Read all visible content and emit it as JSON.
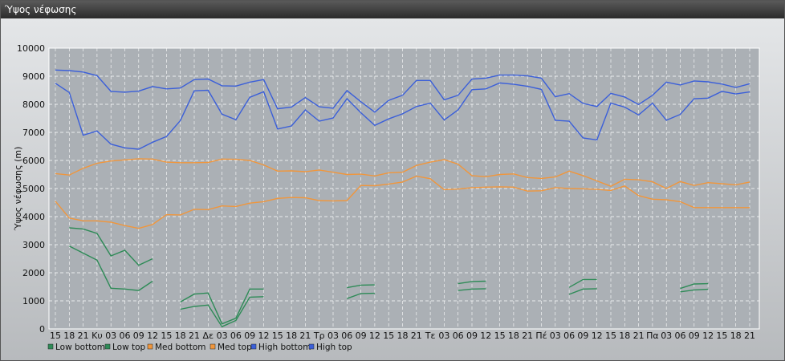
{
  "window": {
    "title": "Ύψος νέφωσης"
  },
  "colors": {
    "low": "#2e8b57",
    "med": "#f0963c",
    "high": "#3b5fd9"
  },
  "chart_data": {
    "type": "line",
    "title": "",
    "xlabel": "",
    "ylabel": "Ύψος νέφωσης (m)",
    "ylim": [
      0,
      10000
    ],
    "yticks": [
      0,
      1000,
      2000,
      3000,
      4000,
      5000,
      6000,
      7000,
      8000,
      9000,
      10000
    ],
    "grid": true,
    "legend_position": "bottom-left",
    "x": [
      "15",
      "18",
      "21",
      "Κυ",
      "03",
      "06",
      "09",
      "12",
      "15",
      "18",
      "21",
      "Δε",
      "03",
      "06",
      "09",
      "12",
      "15",
      "18",
      "21",
      "Τρ",
      "03",
      "06",
      "09",
      "12",
      "15",
      "18",
      "21",
      "Τε",
      "03",
      "06",
      "09",
      "12",
      "15",
      "18",
      "21",
      "Πέ",
      "03",
      "06",
      "09",
      "12",
      "15",
      "18",
      "21",
      "Πα",
      "03",
      "06",
      "09",
      "12",
      "15",
      "18",
      "21"
    ],
    "series": [
      {
        "name": "Low bottom",
        "color": "#2e8b57",
        "values": [
          null,
          2950,
          2700,
          2450,
          1450,
          1420,
          1370,
          1700,
          null,
          700,
          800,
          850,
          80,
          300,
          1130,
          1150,
          null,
          null,
          null,
          null,
          null,
          1080,
          1260,
          1270,
          null,
          null,
          null,
          null,
          null,
          1370,
          1420,
          1430,
          null,
          null,
          null,
          null,
          null,
          1230,
          1420,
          1430,
          null,
          null,
          null,
          null,
          null,
          1320,
          1390,
          1410,
          null,
          null,
          null
        ]
      },
      {
        "name": "Low top",
        "color": "#2e8b57",
        "values": [
          null,
          3600,
          3560,
          3400,
          2600,
          2800,
          2270,
          2500,
          null,
          960,
          1240,
          1280,
          180,
          380,
          1420,
          1420,
          null,
          null,
          null,
          null,
          null,
          1470,
          1560,
          1570,
          null,
          null,
          null,
          null,
          null,
          1610,
          1690,
          1700,
          null,
          null,
          null,
          null,
          null,
          1480,
          1760,
          1760,
          null,
          null,
          null,
          null,
          null,
          1440,
          1600,
          1610,
          null,
          null,
          null
        ]
      },
      {
        "name": "Med bottom",
        "color": "#f0963c",
        "values": [
          4550,
          3950,
          3850,
          3850,
          3800,
          3680,
          3580,
          3720,
          4070,
          4060,
          4260,
          4250,
          4380,
          4360,
          4480,
          4530,
          4650,
          4680,
          4670,
          4570,
          4560,
          4570,
          5110,
          5100,
          5160,
          5230,
          5440,
          5350,
          4960,
          4980,
          5030,
          5050,
          5060,
          5050,
          4910,
          4920,
          5030,
          5000,
          4990,
          4970,
          4930,
          5090,
          4750,
          4620,
          4600,
          4530,
          4320,
          4320,
          4320,
          4320,
          4320
        ]
      },
      {
        "name": "Med top",
        "color": "#f0963c",
        "values": [
          5530,
          5480,
          5720,
          5900,
          5980,
          6020,
          6060,
          6050,
          5940,
          5920,
          5920,
          5930,
          6050,
          6040,
          6000,
          5840,
          5620,
          5630,
          5600,
          5660,
          5580,
          5500,
          5510,
          5450,
          5560,
          5580,
          5820,
          5940,
          6030,
          5870,
          5460,
          5420,
          5500,
          5520,
          5390,
          5360,
          5410,
          5620,
          5460,
          5270,
          5080,
          5330,
          5310,
          5240,
          5000,
          5250,
          5110,
          5210,
          5170,
          5130,
          5230
        ]
      },
      {
        "name": "High bottom",
        "color": "#3b5fd9",
        "values": [
          8750,
          8420,
          6900,
          7050,
          6580,
          6450,
          6400,
          6650,
          6850,
          7420,
          8480,
          8500,
          7650,
          7450,
          8250,
          8450,
          7120,
          7230,
          7800,
          7400,
          7510,
          8200,
          7700,
          7250,
          7480,
          7660,
          7920,
          8040,
          7440,
          7800,
          8520,
          8550,
          8760,
          8710,
          8640,
          8530,
          7430,
          7400,
          6800,
          6730,
          8040,
          7900,
          7620,
          8040,
          7430,
          7640,
          8200,
          8220,
          8460,
          8370,
          8440
        ]
      },
      {
        "name": "High top",
        "color": "#3b5fd9",
        "values": [
          9220,
          9200,
          9150,
          9020,
          8460,
          8430,
          8470,
          8630,
          8550,
          8580,
          8880,
          8900,
          8660,
          8650,
          8790,
          8880,
          7840,
          7900,
          8240,
          7910,
          7860,
          8490,
          8090,
          7720,
          8140,
          8320,
          8850,
          8850,
          8160,
          8320,
          8900,
          8930,
          9040,
          9040,
          9010,
          8930,
          8270,
          8380,
          8030,
          7920,
          8390,
          8260,
          7990,
          8320,
          8790,
          8690,
          8830,
          8800,
          8720,
          8600,
          8730
        ]
      }
    ]
  }
}
